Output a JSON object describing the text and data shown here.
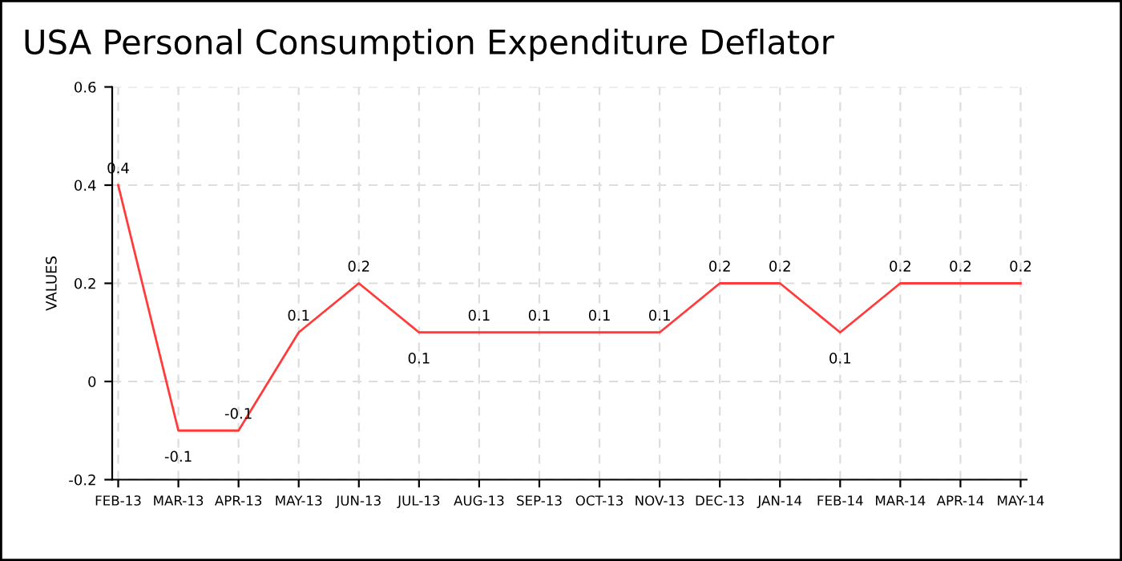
{
  "chart_data": {
    "type": "line",
    "title": "USA Personal Consumption Expenditure Deflator",
    "ylabel": "VALUES",
    "categories": [
      "FEB-13",
      "MAR-13",
      "APR-13",
      "MAY-13",
      "JUN-13",
      "JUL-13",
      "AUG-13",
      "SEP-13",
      "OCT-13",
      "NOV-13",
      "DEC-13",
      "JAN-14",
      "FEB-14",
      "MAR-14",
      "APR-14",
      "MAY-14"
    ],
    "series": [
      {
        "color": "#ff3b3b",
        "values": [
          0.4,
          -0.1,
          -0.1,
          0.1,
          0.2,
          0.1,
          0.1,
          0.1,
          0.1,
          0.1,
          0.2,
          0.2,
          0.1,
          0.2,
          0.2,
          0.2
        ]
      }
    ],
    "ylim": [
      -0.2,
      0.6
    ],
    "yticks": [
      -0.2,
      0,
      0.2,
      0.4,
      0.6
    ],
    "grid": true,
    "line_style": "solid",
    "data_labels": true
  }
}
